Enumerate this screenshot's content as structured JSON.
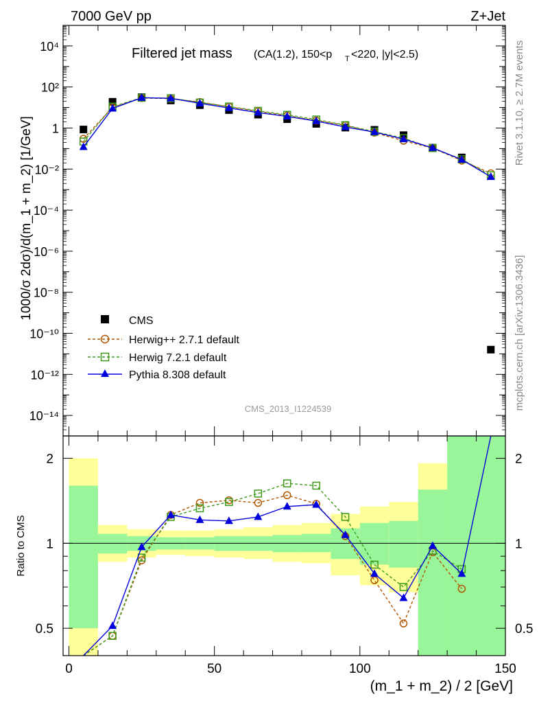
{
  "header": {
    "left": "7000 GeV pp",
    "right": "Z+Jet"
  },
  "side_labels": {
    "rivet": "Rivet 3.1.10, ≥ 2.7M events",
    "mcplots": "mcplots.cern.ch [arXiv:1306.3436]"
  },
  "watermark": "CMS_2013_I1224539",
  "colors": {
    "cms": "#000000",
    "herwigpp": "#b15400",
    "herwig7": "#3d9a1a",
    "pythia": "#0000dd",
    "band_inner": "#99f599",
    "band_outer": "#ffff99"
  },
  "chart_data": [
    {
      "type": "scatter",
      "title": "Filtered jet mass",
      "title_sub": "(CA(1.2), 150<p",
      "title_sub_T": "T",
      "title_sub_end": "<220, |y|<2.5)",
      "ylabel": "1000/σ 2dσ)/d(m_1 + m_2) [1/GeV]",
      "xlim": [
        -2,
        150
      ],
      "ylim": [
        1e-15,
        100000.0
      ],
      "yscale": "log",
      "ytick_labels": [
        "10⁴",
        "10²",
        "1",
        "10⁻²",
        "10⁻⁴",
        "10⁻⁶",
        "10⁻⁸",
        "10⁻¹⁰",
        "10⁻¹²",
        "10⁻¹⁴"
      ],
      "legend_position": "bottom-left",
      "x": [
        5,
        15,
        25,
        35,
        45,
        55,
        65,
        75,
        85,
        95,
        105,
        115,
        125,
        135,
        145
      ],
      "series": [
        {
          "name": "CMS",
          "style": "square-filled",
          "values": [
            0.85,
            19,
            32,
            22,
            13,
            7.5,
            4.5,
            2.7,
            1.6,
            1.05,
            0.82,
            0.45,
            0.11,
            0.037,
            1.6e-11
          ]
        },
        {
          "name": "Herwig++ 2.7.1 default",
          "style": "circle-open-dashed",
          "values": [
            0.3,
            10,
            29,
            27,
            18.5,
            10.8,
            6.5,
            4.0,
            2.3,
            1.35,
            0.6,
            0.24,
            0.105,
            0.026,
            0.0062
          ]
        },
        {
          "name": "Herwig 7.2.1 default",
          "style": "square-open-dashed",
          "values": [
            0.22,
            11,
            30,
            28.5,
            17.5,
            11.2,
            6.9,
            4.4,
            2.6,
            1.38,
            0.66,
            0.32,
            0.105,
            0.03,
            0.005
          ]
        },
        {
          "name": "Pythia 8.308 default",
          "style": "triangle-filled-solid",
          "values": [
            0.12,
            9,
            30,
            28,
            16,
            9.5,
            5.7,
            3.7,
            2.2,
            1.12,
            0.64,
            0.29,
            0.108,
            0.029,
            0.0042
          ]
        }
      ]
    },
    {
      "type": "line",
      "ylabel": "Ratio to CMS",
      "xlabel": "(m_1 + m_2) / 2 [GeV]",
      "xlim": [
        -2,
        150
      ],
      "ylim": [
        0.4,
        2.4
      ],
      "yscale": "log",
      "xtick_labels": [
        "0",
        "50",
        "100",
        "150"
      ],
      "ytick_labels": [
        "2",
        "1",
        "0.5"
      ],
      "reference_line": 1,
      "x": [
        5,
        15,
        25,
        35,
        45,
        55,
        65,
        75,
        85,
        95,
        105,
        115,
        125,
        135
      ],
      "bands": [
        {
          "x0": 0,
          "x1": 10,
          "inner": [
            0.5,
            1.6
          ],
          "outer": [
            0.4,
            2.0
          ]
        },
        {
          "x0": 10,
          "x1": 20,
          "inner": [
            0.92,
            1.08
          ],
          "outer": [
            0.86,
            1.16
          ]
        },
        {
          "x0": 20,
          "x1": 30,
          "inner": [
            0.94,
            1.06
          ],
          "outer": [
            0.89,
            1.12
          ]
        },
        {
          "x0": 30,
          "x1": 40,
          "inner": [
            0.95,
            1.05
          ],
          "outer": [
            0.91,
            1.11
          ]
        },
        {
          "x0": 40,
          "x1": 50,
          "inner": [
            0.95,
            1.05
          ],
          "outer": [
            0.9,
            1.11
          ]
        },
        {
          "x0": 50,
          "x1": 60,
          "inner": [
            0.94,
            1.06
          ],
          "outer": [
            0.89,
            1.12
          ]
        },
        {
          "x0": 60,
          "x1": 70,
          "inner": [
            0.94,
            1.06
          ],
          "outer": [
            0.88,
            1.14
          ]
        },
        {
          "x0": 70,
          "x1": 80,
          "inner": [
            0.93,
            1.07
          ],
          "outer": [
            0.86,
            1.16
          ]
        },
        {
          "x0": 80,
          "x1": 90,
          "inner": [
            0.93,
            1.08
          ],
          "outer": [
            0.85,
            1.18
          ]
        },
        {
          "x0": 90,
          "x1": 100,
          "inner": [
            0.88,
            1.13
          ],
          "outer": [
            0.77,
            1.27
          ]
        },
        {
          "x0": 100,
          "x1": 110,
          "inner": [
            0.84,
            1.18
          ],
          "outer": [
            0.71,
            1.35
          ]
        },
        {
          "x0": 110,
          "x1": 120,
          "inner": [
            0.82,
            1.2
          ],
          "outer": [
            0.67,
            1.4
          ]
        },
        {
          "x0": 120,
          "x1": 130,
          "inner": [
            0.4,
            1.55
          ],
          "outer": [
            0.4,
            1.92
          ]
        },
        {
          "x0": 130,
          "x1": 140,
          "inner": [
            0.4,
            2.4
          ],
          "outer": [
            0.4,
            2.4
          ]
        },
        {
          "x0": 140,
          "x1": 150,
          "inner": [
            0.4,
            2.4
          ],
          "outer": [
            0.4,
            2.4
          ]
        }
      ],
      "series": [
        {
          "name": "Herwig++ 2.7.1 default",
          "values": [
            0.35,
            0.47,
            0.87,
            1.26,
            1.39,
            1.42,
            1.39,
            1.48,
            1.38,
            1.06,
            0.74,
            0.52,
            0.93,
            0.69
          ]
        },
        {
          "name": "Herwig 7.2.1 default",
          "values": [
            0.3,
            0.47,
            0.89,
            1.24,
            1.33,
            1.4,
            1.5,
            1.63,
            1.6,
            1.24,
            0.84,
            0.7,
            0.94,
            0.81
          ]
        },
        {
          "name": "Pythia 8.308 default",
          "values": [
            0.14,
            0.51,
            0.97,
            1.26,
            1.21,
            1.2,
            1.24,
            1.35,
            1.37,
            1.07,
            0.78,
            0.64,
            0.98,
            0.78
          ]
        }
      ],
      "pythia_last_point": {
        "x": 145,
        "y": 2.4
      }
    }
  ]
}
